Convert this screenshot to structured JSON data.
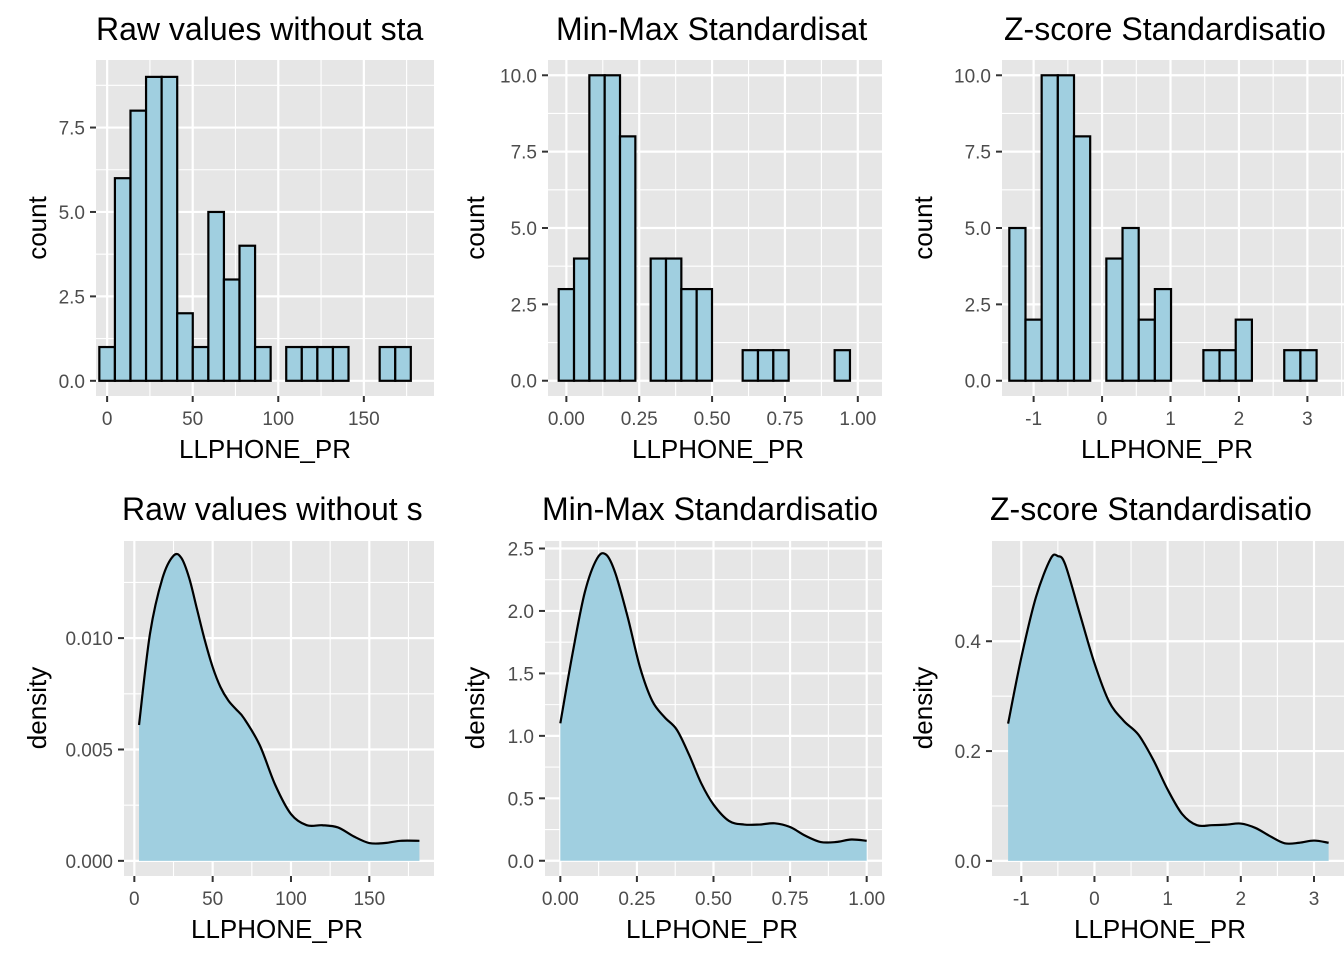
{
  "figure": {
    "background": "#ffffff",
    "panel_background": "#e6e6e6",
    "grid_color": "#ffffff",
    "fill_color": "#a0cfe0",
    "line_color": "#000000"
  },
  "chart_data": [
    {
      "type": "bar",
      "title": "Raw values without sta",
      "xlabel": "LLPHONE_PR",
      "ylabel": "count",
      "xlim": [
        -6.5,
        191
      ],
      "ylim": [
        -0.45,
        9.5
      ],
      "xticks": [
        0,
        50,
        100,
        150
      ],
      "xtick_labels": [
        "0",
        "50",
        "100",
        "150"
      ],
      "yticks": [
        0,
        2.5,
        5,
        7.5
      ],
      "ytick_labels": [
        "0.0",
        "2.5",
        "5.0",
        "7.5"
      ],
      "bin_width": 9.1,
      "x": [
        0,
        9.1,
        18.2,
        27.3,
        36.4,
        45.5,
        54.6,
        63.7,
        72.8,
        81.9,
        91,
        100.1,
        109.2,
        118.3,
        127.4,
        136.5,
        145.6,
        154.7,
        163.8,
        172.9
      ],
      "values": [
        1,
        6,
        8,
        9,
        9,
        2,
        1,
        5,
        3,
        4,
        1,
        0,
        1,
        1,
        1,
        1,
        0,
        0,
        1,
        1
      ],
      "grid": true
    },
    {
      "type": "bar",
      "title": "Min-Max Standardisat",
      "xlabel": "LLPHONE_PR",
      "ylabel": "count",
      "xlim": [
        -0.063,
        1.083
      ],
      "ylim": [
        -0.5,
        10.5
      ],
      "xticks": [
        0,
        0.25,
        0.5,
        0.75,
        1
      ],
      "xtick_labels": [
        "0.00",
        "0.25",
        "0.50",
        "0.75",
        "1.00"
      ],
      "yticks": [
        0,
        2.5,
        5,
        7.5,
        10
      ],
      "ytick_labels": [
        "0.0",
        "2.5",
        "5.0",
        "7.5",
        "10.0"
      ],
      "bin_width": 0.0526,
      "x": [
        0,
        0.0526,
        0.1052,
        0.1578,
        0.2104,
        0.263,
        0.3156,
        0.3682,
        0.4208,
        0.4734,
        0.526,
        0.5786,
        0.6312,
        0.6838,
        0.7364,
        0.789,
        0.8416,
        0.8942,
        0.9468
      ],
      "values": [
        3,
        4,
        10,
        10,
        8,
        0,
        4,
        4,
        3,
        3,
        0,
        0,
        1,
        1,
        1,
        0,
        0,
        0,
        1
      ],
      "grid": true
    },
    {
      "type": "bar",
      "title": "Z-score Standardisatio",
      "xlabel": "LLPHONE_PR",
      "ylabel": "count",
      "xlim": [
        -1.462,
        3.535
      ],
      "ylim": [
        -0.5,
        10.5
      ],
      "xticks": [
        -1,
        0,
        1,
        2,
        3
      ],
      "xtick_labels": [
        "-1",
        "0",
        "1",
        "2",
        "3"
      ],
      "yticks": [
        0,
        2.5,
        5,
        7.5,
        10
      ],
      "ytick_labels": [
        "0.0",
        "2.5",
        "5.0",
        "7.5",
        "10.0"
      ],
      "bin_width": 0.2363,
      "x": [
        -1.237,
        -1.0007,
        -0.7644,
        -0.5281,
        -0.2918,
        -0.0555,
        0.1808,
        0.4171,
        0.6534,
        0.8897,
        1.126,
        1.3623,
        1.5986,
        1.8349,
        2.0712,
        2.3075,
        2.5438,
        2.7801,
        3.0164
      ],
      "values": [
        5,
        2,
        10,
        10,
        8,
        0,
        4,
        5,
        2,
        3,
        0,
        0,
        1,
        1,
        2,
        0,
        0,
        1,
        1
      ],
      "grid": true
    },
    {
      "type": "area",
      "title": "Raw values without s",
      "xlabel": "LLPHONE_PR",
      "ylabel": "density",
      "xlim": [
        -6.6,
        191.3
      ],
      "ylim": [
        -0.00068,
        0.01436
      ],
      "xticks": [
        0,
        50,
        100,
        150
      ],
      "xtick_labels": [
        "0",
        "50",
        "100",
        "150"
      ],
      "yticks": [
        0,
        0.005,
        0.01
      ],
      "ytick_labels": [
        "0.000",
        "0.005",
        "0.010"
      ],
      "x": [
        3,
        10,
        18,
        25,
        30,
        35,
        40,
        45,
        50,
        55,
        60,
        65,
        70,
        80,
        90,
        100,
        110,
        120,
        130,
        140,
        150,
        160,
        170,
        182
      ],
      "values": [
        0.0061,
        0.0102,
        0.0127,
        0.0137,
        0.0136,
        0.0127,
        0.0113,
        0.0099,
        0.0087,
        0.0078,
        0.0072,
        0.0068,
        0.0064,
        0.0052,
        0.0034,
        0.0021,
        0.0016,
        0.0016,
        0.0015,
        0.0011,
        0.0008,
        0.0008,
        0.0009,
        0.0009
      ],
      "grid": true
    },
    {
      "type": "area",
      "title": "Min-Max Standardisatio",
      "xlabel": "LLPHONE_PR",
      "ylabel": "density",
      "xlim": [
        -0.05,
        1.05
      ],
      "ylim": [
        -0.122,
        2.56
      ],
      "xticks": [
        0,
        0.25,
        0.5,
        0.75,
        1
      ],
      "xtick_labels": [
        "0.00",
        "0.25",
        "0.50",
        "0.75",
        "1.00"
      ],
      "yticks": [
        0,
        0.5,
        1,
        1.5,
        2,
        2.5
      ],
      "ytick_labels": [
        "0.0",
        "0.5",
        "1.0",
        "1.5",
        "2.0",
        "2.5"
      ],
      "x": [
        0,
        0.04,
        0.08,
        0.12,
        0.15,
        0.18,
        0.22,
        0.26,
        0.3,
        0.34,
        0.38,
        0.42,
        0.46,
        0.5,
        0.55,
        0.6,
        0.65,
        0.7,
        0.75,
        0.8,
        0.85,
        0.9,
        0.95,
        1
      ],
      "values": [
        1.1,
        1.66,
        2.15,
        2.42,
        2.45,
        2.3,
        1.95,
        1.55,
        1.28,
        1.15,
        1.05,
        0.85,
        0.62,
        0.45,
        0.32,
        0.29,
        0.29,
        0.3,
        0.27,
        0.2,
        0.15,
        0.15,
        0.17,
        0.16
      ],
      "grid": true
    },
    {
      "type": "area",
      "title": "Z-score Standardisatio",
      "xlabel": "LLPHONE_PR",
      "ylabel": "density",
      "xlim": [
        -1.4,
        3.41
      ],
      "ylim": [
        -0.0275,
        0.5825
      ],
      "xticks": [
        -1,
        0,
        1,
        2,
        3
      ],
      "xtick_labels": [
        "-1",
        "0",
        "1",
        "2",
        "3"
      ],
      "yticks": [
        0,
        0.2,
        0.4
      ],
      "ytick_labels": [
        "0.0",
        "0.2",
        "0.4"
      ],
      "x": [
        -1.18,
        -1,
        -0.8,
        -0.6,
        -0.5,
        -0.4,
        -0.2,
        0,
        0.2,
        0.4,
        0.6,
        0.8,
        1,
        1.2,
        1.4,
        1.6,
        1.8,
        2,
        2.2,
        2.4,
        2.6,
        2.8,
        3,
        3.2
      ],
      "values": [
        0.25,
        0.37,
        0.48,
        0.55,
        0.555,
        0.54,
        0.45,
        0.36,
        0.29,
        0.255,
        0.23,
        0.185,
        0.13,
        0.085,
        0.065,
        0.065,
        0.066,
        0.068,
        0.06,
        0.045,
        0.032,
        0.033,
        0.037,
        0.033
      ],
      "grid": true
    }
  ]
}
